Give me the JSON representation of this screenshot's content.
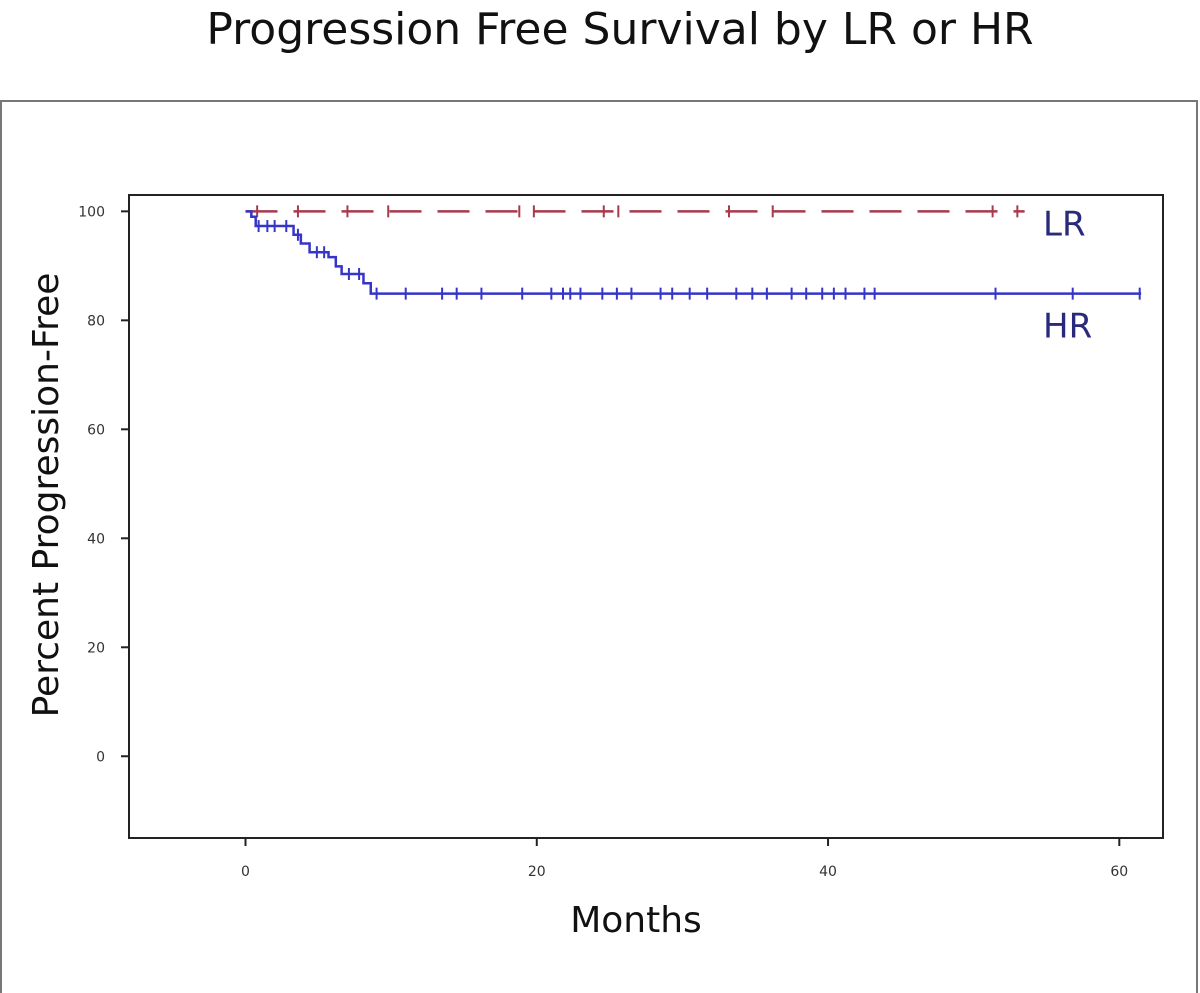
{
  "chart_data": {
    "type": "line",
    "subtype": "kaplan-meier step curve with censor marks",
    "title": "Progression Free Survival by LR or HR",
    "xlabel": "Months",
    "ylabel": "Percent Progression-Free",
    "xlim": [
      -8,
      63
    ],
    "ylim": [
      -15,
      103
    ],
    "xticks": [
      0,
      20,
      40,
      60
    ],
    "yticks": [
      0,
      20,
      40,
      60,
      80,
      100
    ],
    "grid": false,
    "legend": "none (series labelled directly at line ends)",
    "series": [
      {
        "name": "LR",
        "color": "#a83a4c",
        "line_style": "dashed",
        "steps": [
          [
            0,
            100
          ],
          [
            53.5,
            100
          ]
        ],
        "censor_times": [
          0.8,
          3.6,
          7.0,
          9.8,
          18.8,
          19.8,
          24.6,
          25.6,
          33.2,
          36.2,
          51.3,
          53.0
        ]
      },
      {
        "name": "HR",
        "color": "#3535c8",
        "line_style": "solid",
        "steps": [
          [
            0,
            100
          ],
          [
            0.4,
            99
          ],
          [
            0.7,
            97.3
          ],
          [
            3.3,
            95.7
          ],
          [
            3.8,
            94.1
          ],
          [
            4.4,
            92.5
          ],
          [
            5.7,
            91.6
          ],
          [
            6.2,
            89.9
          ],
          [
            6.6,
            88.5
          ],
          [
            8.1,
            86.8
          ],
          [
            8.6,
            84.9
          ],
          [
            61.5,
            84.9
          ]
        ],
        "censor_times": [
          0.9,
          1.5,
          2.0,
          2.8,
          3.6,
          4.9,
          5.4,
          7.1,
          7.8,
          9.0,
          11.0,
          13.5,
          14.5,
          16.2,
          19.0,
          21.0,
          21.8,
          22.3,
          23.0,
          24.5,
          25.5,
          26.5,
          28.5,
          29.3,
          30.5,
          31.7,
          33.7,
          34.8,
          35.8,
          37.5,
          38.5,
          39.6,
          40.4,
          41.2,
          42.5,
          43.2,
          51.5,
          56.8,
          61.4
        ]
      }
    ]
  }
}
